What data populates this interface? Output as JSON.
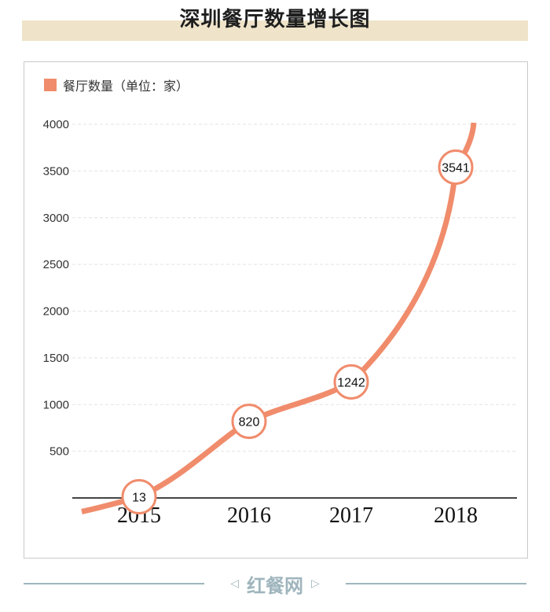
{
  "title": "深圳餐厅数量增长图",
  "chart_data": {
    "type": "line",
    "title": "深圳餐厅数量增长图",
    "legend": "餐厅数量（单位：家）",
    "legend_position": "top-left",
    "categories": [
      "2015",
      "2016",
      "2017",
      "2018"
    ],
    "series": [
      {
        "name": "餐厅数量（单位：家）",
        "values": [
          13,
          820,
          1242,
          3541
        ]
      }
    ],
    "y_ticks": [
      "500",
      "1000",
      "1500",
      "2000",
      "2500",
      "3000",
      "3500",
      "4000"
    ],
    "ylim": [
      0,
      4000
    ],
    "grid": true,
    "line_color": "#f08c6c"
  },
  "footer": {
    "logo_text": "红餐网"
  }
}
